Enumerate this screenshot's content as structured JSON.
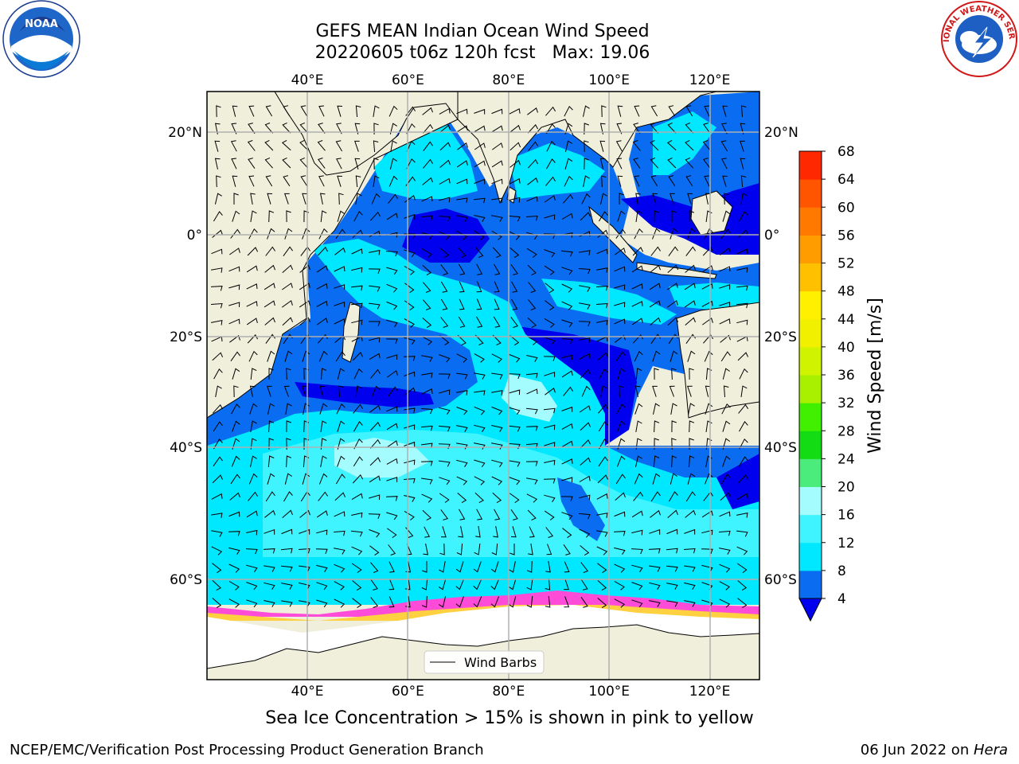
{
  "title_line1": "GEFS MEAN Indian Ocean Wind Speed",
  "title_line2": "20220605 t06z 120h fcst   Max: 19.06",
  "caption": "Sea Ice Concentration > 15% is shown in pink to yellow",
  "footer_left": "NCEP/EMC/Verification Post Processing Product Generation Branch",
  "footer_date": "06 Jun 2022 on ",
  "footer_host": "Hera",
  "logos": {
    "left": "NOAA",
    "right_text": "NATIONAL WEATHER SERVICE"
  },
  "map": {
    "lon_ticks": [
      {
        "label": "40°E",
        "value": 40
      },
      {
        "label": "60°E",
        "value": 60
      },
      {
        "label": "80°E",
        "value": 80
      },
      {
        "label": "100°E",
        "value": 100
      },
      {
        "label": "120°E",
        "value": 120
      }
    ],
    "lat_ticks": [
      {
        "label": "20°N",
        "value": 20
      },
      {
        "label": "0°",
        "value": 0
      },
      {
        "label": "20°S",
        "value": -20
      },
      {
        "label": "40°S",
        "value": -40
      },
      {
        "label": "60°S",
        "value": -60
      }
    ],
    "legend_label": "Wind Barbs",
    "colors": {
      "land": "#efefdc",
      "ice": "#ffffff"
    }
  },
  "colorbar": {
    "label": "Wind Speed [m/s]",
    "ticks": [
      "4",
      "8",
      "12",
      "16",
      "20",
      "24",
      "28",
      "32",
      "36",
      "40",
      "44",
      "48",
      "52",
      "56",
      "60",
      "64",
      "68"
    ],
    "under_color": "#0000ee",
    "colors": [
      "#0a6cf0",
      "#00e8ff",
      "#40f4ff",
      "#a4fcff",
      "#4cec7c",
      "#14dc14",
      "#40f000",
      "#a8f000",
      "#d0f400",
      "#f0f000",
      "#fff000",
      "#ffc000",
      "#ff9c00",
      "#ff7800",
      "#ff5400",
      "#ff2800",
      "#ff0000"
    ]
  }
}
